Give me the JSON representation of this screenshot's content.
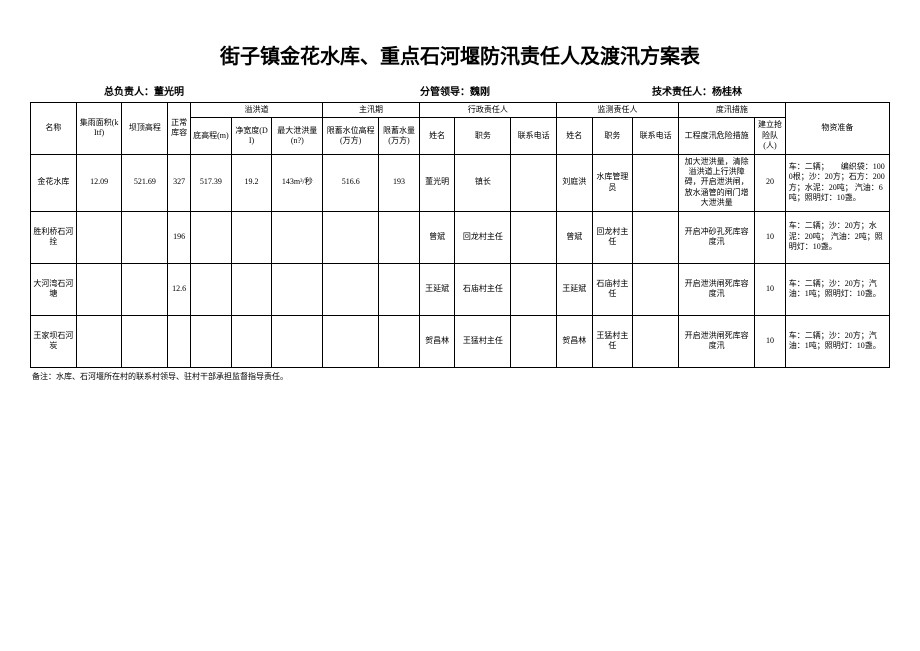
{
  "title": "街子镇金花水库、重点石河堰防汛责任人及渡汛方案表",
  "header": {
    "chief_label": "总负责人：",
    "chief_name": "董光明",
    "deputy_label": "分管领导：",
    "deputy_name": "魏刚",
    "tech_label": "技术责任人：",
    "tech_name": "杨桂林"
  },
  "thead": {
    "name": "名称",
    "area": "集雨面积(kItf)",
    "dam_height": "坝顶高程",
    "capacity": "正常库容",
    "spillway_group": "溢洪道",
    "spillway_bottom": "底高程(m)",
    "spillway_width": "净宽度(DI)",
    "spillway_max": "最大泄洪量(n?)",
    "flood_group": "主汛期",
    "flood_level": "限蓄水位高程(万方)",
    "flood_volume": "限蓄水量(万方)",
    "admin_group": "行政责任人",
    "admin_name": "姓名",
    "admin_post": "职务",
    "admin_tel": "联系电话",
    "mon_group": "监测责任人",
    "mon_name": "姓名",
    "mon_post": "职务",
    "mon_tel": "联系电话",
    "measure_group": "度汛措施",
    "measure_eng": "工程度汛危险措施",
    "measure_team": "建立抢险队(人)",
    "material": "物资准备"
  },
  "rows": [
    {
      "name": "金花水库",
      "area": "12.09",
      "dam": "521.69",
      "cap": "327",
      "sw1": "517.39",
      "sw2": "19.2",
      "sw3": "143m³/秒",
      "fl1": "516.6",
      "fl2": "193",
      "an": "董光明",
      "ap": "镇长",
      "at": "",
      "mn": "刘庭洪",
      "mp": "水库管理员",
      "mt": "",
      "meas": "加大泄洪量，清除溢洪道上行洪障碍，开启泄洪闸，放水涵管的闸门增大泄洪量",
      "team": "20",
      "mat": "车：二辆；　　编织袋：1000根；沙：20方；石方：200方；水泥：20吨；\n汽油：6吨；照明灯：10盏。"
    },
    {
      "name": "胜利桥石河拴",
      "area": "",
      "dam": "",
      "cap": "196",
      "sw1": "",
      "sw2": "",
      "sw3": "",
      "fl1": "",
      "fl2": "",
      "an": "曾斌",
      "ap": "回龙村主任",
      "at": "",
      "mn": "曾斌",
      "mp": "回龙村主任",
      "mt": "",
      "meas": "开启冲砂孔死库容度汛",
      "team": "10",
      "mat": "车：二辆；沙：20方；水泥：20吨；\n汽油：2吨；照明灯：10盏。"
    },
    {
      "name": "大河湾石河塘",
      "area": "",
      "dam": "",
      "cap": "12.6",
      "sw1": "",
      "sw2": "",
      "sw3": "",
      "fl1": "",
      "fl2": "",
      "an": "王延斌",
      "ap": "石庙村主任",
      "at": "",
      "mn": "王延斌",
      "mp": "石庙村主任",
      "mt": "",
      "meas": "开启泄洪闸死库容度汛",
      "team": "10",
      "mat": "车：二辆；沙：20方；汽油：1吨；照明灯：10盏。"
    },
    {
      "name": "王家坝石河炭",
      "area": "",
      "dam": "",
      "cap": "",
      "sw1": "",
      "sw2": "",
      "sw3": "",
      "fl1": "",
      "fl2": "",
      "an": "贺昌林",
      "ap": "王猛村主任",
      "at": "",
      "mn": "贺昌林",
      "mp": "王猛村主任",
      "mt": "",
      "meas": "开启泄洪闸死库容度汛",
      "team": "10",
      "mat": "车：二辆；沙：20方；汽油：1吨；照明灯：10盏。"
    }
  ],
  "footnote": "备注：水库、石河堰所在村的联系村领导、驻村干部承担监督指导责任。"
}
